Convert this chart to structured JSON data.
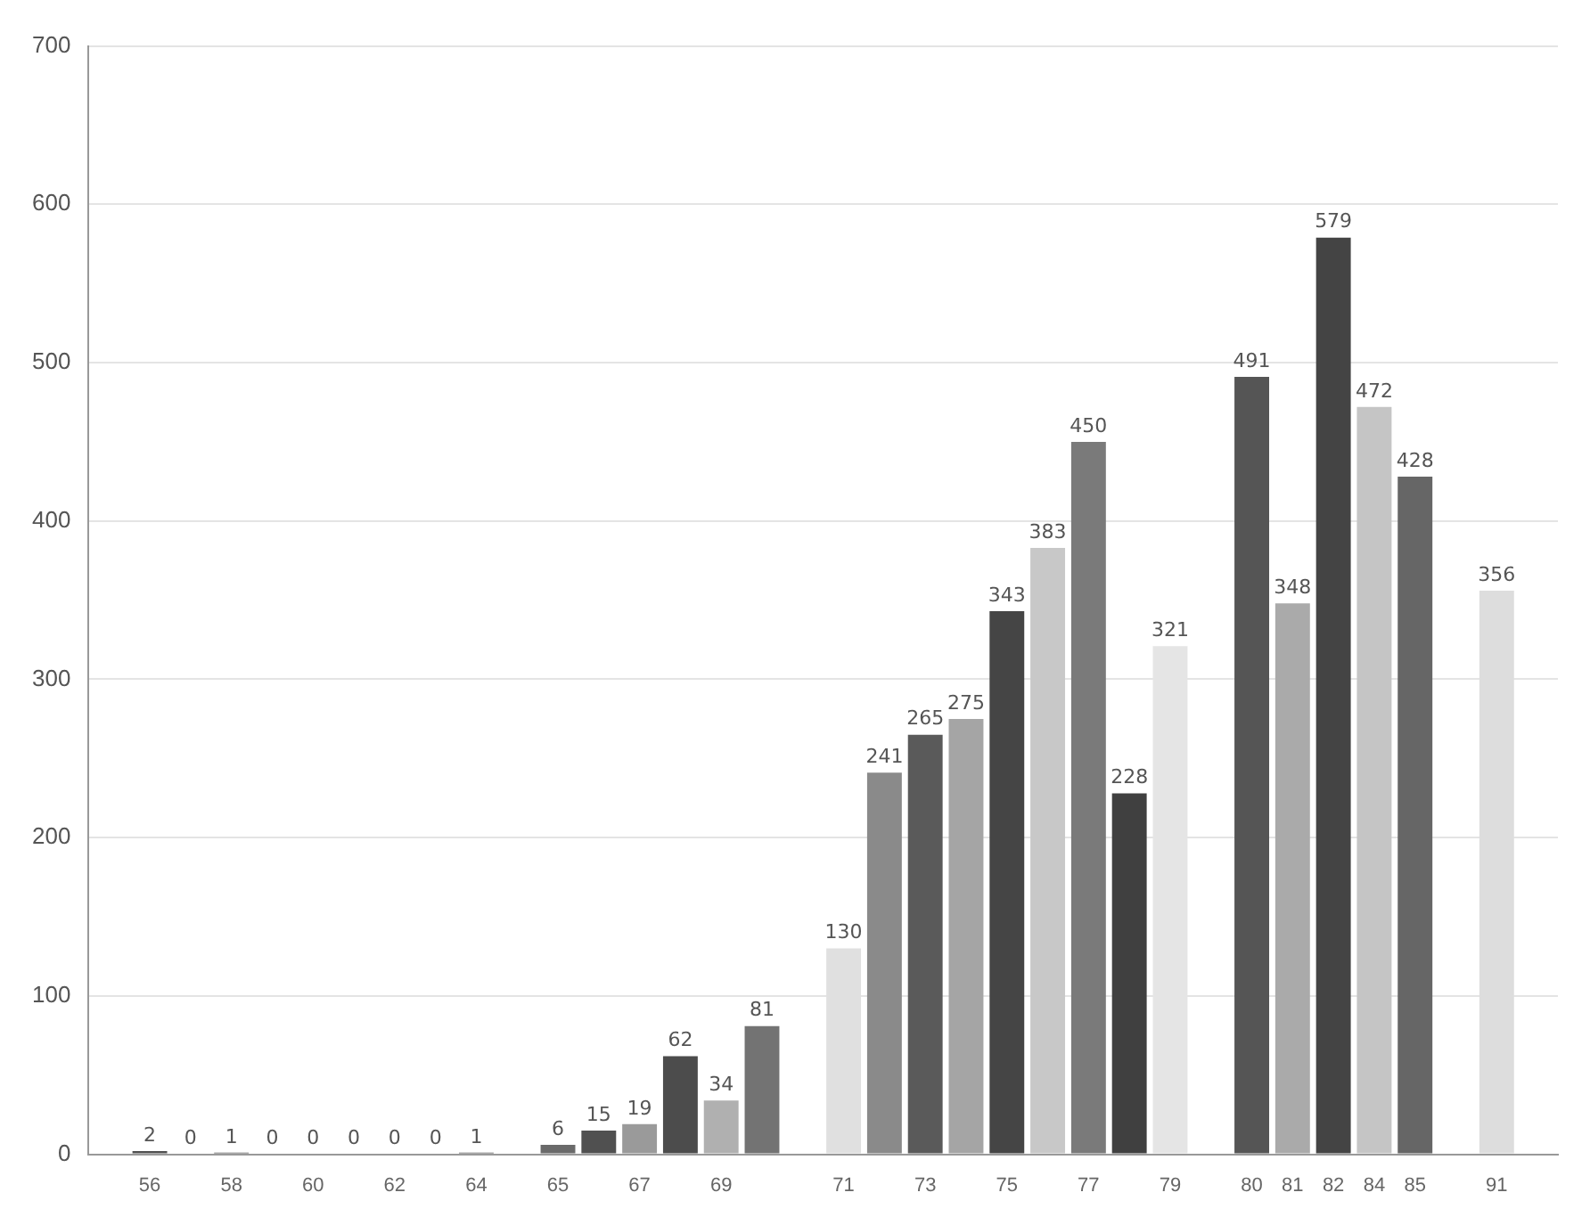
{
  "chart_data": {
    "type": "bar",
    "categories": [
      null,
      "56",
      null,
      "58",
      null,
      "60",
      null,
      "62",
      null,
      "64",
      null,
      "65",
      null,
      "67",
      null,
      "69",
      null,
      null,
      "71",
      null,
      "73",
      null,
      "75",
      null,
      "77",
      null,
      "79",
      null,
      "80",
      "81",
      "82",
      "84",
      "85",
      null,
      "91",
      null
    ],
    "values": [
      null,
      2,
      0,
      1,
      0,
      0,
      0,
      0,
      0,
      1,
      null,
      6,
      15,
      19,
      62,
      34,
      81,
      null,
      130,
      241,
      265,
      275,
      343,
      383,
      450,
      228,
      321,
      null,
      491,
      348,
      579,
      472,
      428,
      null,
      356,
      null
    ],
    "colors": [
      "#888888",
      "#505050",
      "#555555",
      "#555555",
      "#555555",
      "#555555",
      "#555555",
      "#555555",
      "#555555",
      "#555555",
      "#888888",
      "#6a6a6a",
      "#505050",
      "#9a9a9a",
      "#4c4c4c",
      "#b0b0b0",
      "#737373",
      "#888888",
      "#e0e0e0",
      "#8a8a8a",
      "#5a5a5a",
      "#a5a5a5",
      "#454545",
      "#c8c8c8",
      "#7a7a7a",
      "#404040",
      "#e5e5e5",
      "#888888",
      "#555555",
      "#aaaaaa",
      "#444444",
      "#c5c5c5",
      "#666666",
      "#888888",
      "#dddddd",
      "#888888"
    ],
    "ylim": [
      0,
      700
    ],
    "yticks": [
      0,
      100,
      200,
      300,
      400,
      500,
      600,
      700
    ],
    "grid": "y",
    "data_labels": true
  }
}
